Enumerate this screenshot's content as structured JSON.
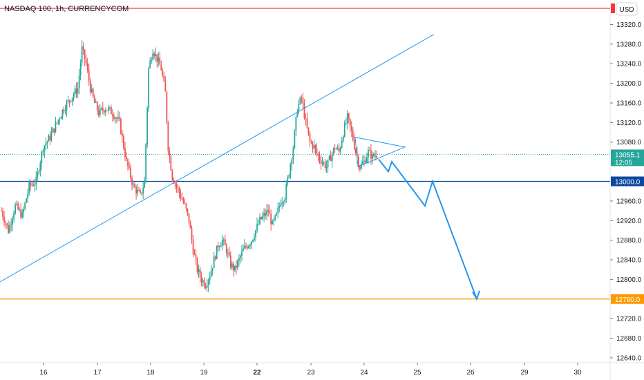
{
  "header": {
    "title": "NASDAQ 100, 1h, CURRENCYCOM",
    "currency_button": "USD"
  },
  "colors": {
    "up": "#26a69a",
    "down": "#ef5350",
    "trendline": "#2196f3",
    "level_13000": "#0d47a1",
    "level_12760": "#ff9800",
    "top_line": "#f23645",
    "last_price": "#26a69a"
  },
  "chart_data": {
    "type": "candlestick",
    "symbol": "NASDAQ 100",
    "interval": "1h",
    "source": "CURRENCYCOM",
    "y_range": [
      12630,
      13370
    ],
    "y_ticks": [
      "13320.0",
      "13280.0",
      "13240.0",
      "13200.0",
      "13160.0",
      "13120.0",
      "13080.0",
      "12960.0",
      "12920.0",
      "12880.0",
      "12840.0",
      "12800.0",
      "12720.0",
      "12680.0",
      "12640.0"
    ],
    "x_ticks": [
      {
        "label": "16",
        "bold": false
      },
      {
        "label": "17",
        "bold": false
      },
      {
        "label": "18",
        "bold": false
      },
      {
        "label": "19",
        "bold": false
      },
      {
        "label": "22",
        "bold": true
      },
      {
        "label": "23",
        "bold": false
      },
      {
        "label": "24",
        "bold": false
      },
      {
        "label": "25",
        "bold": false
      },
      {
        "label": "26",
        "bold": false
      },
      {
        "label": "29",
        "bold": false
      },
      {
        "label": "30",
        "bold": false
      }
    ],
    "price_path": [
      [
        0,
        12940
      ],
      [
        5,
        12900
      ],
      [
        10,
        12950
      ],
      [
        15,
        12930
      ],
      [
        20,
        12990
      ],
      [
        25,
        13000
      ],
      [
        30,
        13070
      ],
      [
        35,
        13090
      ],
      [
        40,
        13120
      ],
      [
        45,
        13150
      ],
      [
        50,
        13170
      ],
      [
        55,
        13190
      ],
      [
        58,
        13270
      ],
      [
        61,
        13240
      ],
      [
        64,
        13190
      ],
      [
        67,
        13160
      ],
      [
        70,
        13140
      ],
      [
        75,
        13150
      ],
      [
        80,
        13140
      ],
      [
        85,
        13120
      ],
      [
        90,
        13040
      ],
      [
        95,
        12990
      ],
      [
        100,
        12970
      ],
      [
        103,
        13000
      ],
      [
        106,
        13230
      ],
      [
        109,
        13270
      ],
      [
        112,
        13250
      ],
      [
        115,
        13230
      ],
      [
        118,
        13180
      ],
      [
        120,
        13070
      ],
      [
        123,
        13010
      ],
      [
        126,
        12990
      ],
      [
        129,
        12970
      ],
      [
        132,
        12950
      ],
      [
        135,
        12920
      ],
      [
        138,
        12860
      ],
      [
        141,
        12820
      ],
      [
        144,
        12800
      ],
      [
        147,
        12790
      ],
      [
        150,
        12810
      ],
      [
        153,
        12840
      ],
      [
        156,
        12870
      ],
      [
        159,
        12880
      ],
      [
        162,
        12860
      ],
      [
        165,
        12830
      ],
      [
        168,
        12820
      ],
      [
        171,
        12840
      ],
      [
        174,
        12860
      ],
      [
        177,
        12870
      ],
      [
        180,
        12880
      ],
      [
        183,
        12900
      ],
      [
        186,
        12920
      ],
      [
        189,
        12930
      ],
      [
        192,
        12940
      ],
      [
        195,
        12910
      ],
      [
        198,
        12930
      ],
      [
        201,
        12960
      ],
      [
        204,
        12970
      ],
      [
        207,
        13020
      ],
      [
        210,
        13070
      ],
      [
        213,
        13150
      ],
      [
        216,
        13170
      ],
      [
        219,
        13120
      ],
      [
        222,
        13080
      ],
      [
        225,
        13070
      ],
      [
        228,
        13050
      ],
      [
        231,
        13040
      ],
      [
        234,
        13030
      ],
      [
        237,
        13050
      ],
      [
        240,
        13070
      ],
      [
        243,
        13060
      ],
      [
        246,
        13100
      ],
      [
        249,
        13130
      ],
      [
        252,
        13100
      ],
      [
        255,
        13060
      ],
      [
        258,
        13030
      ],
      [
        261,
        13040
      ],
      [
        264,
        13060
      ],
      [
        267,
        13050
      ],
      [
        270,
        13055
      ]
    ],
    "current_price": {
      "label": "13055.1",
      "countdown": "12:05",
      "value": 13055.1
    },
    "horizontal_levels": [
      {
        "value": 13000.0,
        "label": "13000.0",
        "color_key": "level_13000"
      },
      {
        "value": 12760.0,
        "label": "12760.0",
        "color_key": "level_12760"
      },
      {
        "value": 13353,
        "label": "",
        "color_key": "top_line"
      }
    ],
    "projection_path": [
      [
        13045,
        0
      ],
      [
        13020,
        0
      ],
      [
        13040,
        0
      ],
      [
        12950,
        0
      ],
      [
        13000,
        0
      ],
      [
        12760,
        0
      ]
    ],
    "trendline": {
      "from": [
        12795,
        0
      ],
      "to": [
        13300,
        0
      ]
    },
    "triangle": {
      "top_left": 13090,
      "bottom_left": 13030,
      "apex": 13070
    }
  }
}
